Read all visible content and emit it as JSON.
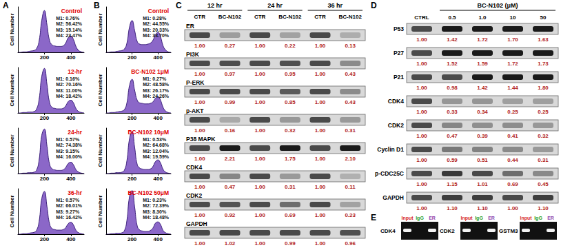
{
  "chart_data": [
    {
      "type": "area",
      "panel": "A",
      "title": "Control",
      "annotations": [
        "M1: 0.76%",
        "M2: 56.42%",
        "M3: 15.14%",
        "M4: 23.47%"
      ],
      "y_label": "Cell Number",
      "color": "#7e57c2",
      "tick_labels": "x",
      "xlim": [
        0,
        500
      ],
      "xticks": [
        200,
        400
      ],
      "ylim": [
        0,
        100
      ],
      "x": [
        0,
        20,
        40,
        60,
        80,
        100,
        120,
        140,
        160,
        180,
        200,
        220,
        240,
        260,
        280,
        300,
        320,
        340,
        360,
        380,
        400,
        420,
        440,
        460,
        480,
        500
      ],
      "values": [
        0,
        0,
        1,
        1,
        2,
        3,
        4,
        8,
        25,
        70,
        92,
        60,
        25,
        16,
        14,
        13,
        13,
        14,
        20,
        32,
        36,
        28,
        12,
        4,
        1,
        0
      ]
    },
    {
      "type": "area",
      "panel": "A",
      "title": "12-hr",
      "annotations": [
        "M1: 0.16%",
        "M2: 70.16%",
        "M3: 11.00%",
        "M4: 18.42%"
      ],
      "y_label": "Cell Number",
      "color": "#7e57c2",
      "tick_labels": "x",
      "xlim": [
        0,
        500
      ],
      "xticks": [
        200,
        400
      ],
      "ylim": [
        0,
        100
      ],
      "x": [
        0,
        20,
        40,
        60,
        80,
        100,
        120,
        140,
        160,
        180,
        200,
        220,
        240,
        260,
        280,
        300,
        320,
        340,
        360,
        380,
        400,
        420,
        440,
        460,
        480,
        500
      ],
      "values": [
        0,
        0,
        1,
        1,
        2,
        2,
        3,
        8,
        30,
        80,
        98,
        62,
        22,
        12,
        10,
        9,
        9,
        10,
        15,
        25,
        28,
        22,
        9,
        3,
        1,
        0
      ]
    },
    {
      "type": "area",
      "panel": "A",
      "title": "24-hr",
      "annotations": [
        "M1: 0.57%",
        "M2: 74.38%",
        "M3: 9.15%",
        "M4: 16.00%"
      ],
      "y_label": "Cell Number",
      "color": "#7e57c2",
      "tick_labels": "x",
      "xlim": [
        0,
        500
      ],
      "xticks": [
        200,
        400
      ],
      "ylim": [
        0,
        100
      ],
      "x": [
        0,
        20,
        40,
        60,
        80,
        100,
        120,
        140,
        160,
        180,
        200,
        220,
        240,
        260,
        280,
        300,
        320,
        340,
        360,
        380,
        400,
        420,
        440,
        460,
        480,
        500
      ],
      "values": [
        0,
        0,
        1,
        1,
        2,
        2,
        3,
        7,
        30,
        84,
        98,
        60,
        20,
        10,
        8,
        7,
        7,
        8,
        13,
        22,
        25,
        19,
        8,
        3,
        1,
        0
      ]
    },
    {
      "type": "area",
      "panel": "A",
      "title": "36-hr",
      "annotations": [
        "M1: 0.57%",
        "M2: 66.01%",
        "M3: 9.27%",
        "M4: 16.42%"
      ],
      "y_label": "Cell Number",
      "color": "#7e57c2",
      "tick_labels": "x",
      "xlim": [
        0,
        500
      ],
      "xticks": [
        200,
        400
      ],
      "ylim": [
        0,
        100
      ],
      "x": [
        0,
        20,
        40,
        60,
        80,
        100,
        120,
        140,
        160,
        180,
        200,
        220,
        240,
        260,
        280,
        300,
        320,
        340,
        360,
        380,
        400,
        420,
        440,
        460,
        480,
        500
      ],
      "values": [
        0,
        0,
        1,
        1,
        2,
        3,
        4,
        8,
        28,
        78,
        94,
        60,
        22,
        12,
        10,
        9,
        9,
        10,
        14,
        23,
        26,
        20,
        8,
        3,
        1,
        0
      ]
    },
    {
      "type": "area",
      "panel": "B",
      "title": "Control",
      "annotations": [
        "M1: 0.28%",
        "M2: 44.55%",
        "M3: 20.33%",
        "M4: 33.70%"
      ],
      "y_label": "Cell Number",
      "color": "#7e57c2",
      "tick_labels": "x",
      "xlim": [
        0,
        500
      ],
      "xticks": [
        200,
        400
      ],
      "ylim": [
        0,
        100
      ],
      "x": [
        0,
        20,
        40,
        60,
        80,
        100,
        120,
        140,
        160,
        180,
        200,
        220,
        240,
        260,
        280,
        300,
        320,
        340,
        360,
        380,
        400,
        420,
        440,
        460,
        480,
        500
      ],
      "values": [
        0,
        0,
        1,
        1,
        2,
        3,
        4,
        7,
        20,
        55,
        70,
        48,
        24,
        18,
        17,
        17,
        18,
        20,
        26,
        38,
        44,
        34,
        14,
        5,
        1,
        0
      ]
    },
    {
      "type": "area",
      "panel": "B",
      "title": "BC-N102 1μM",
      "annotations": [
        "M1: 0.27%",
        "M2: 48.58%",
        "M3: 26.17%",
        "M4: 24.26%"
      ],
      "y_label": "Cell Number",
      "color": "#7e57c2",
      "tick_labels": "x",
      "xlim": [
        0,
        500
      ],
      "xticks": [
        200,
        400
      ],
      "ylim": [
        0,
        100
      ],
      "x": [
        0,
        20,
        40,
        60,
        80,
        100,
        120,
        140,
        160,
        180,
        200,
        220,
        240,
        260,
        280,
        300,
        320,
        340,
        360,
        380,
        400,
        420,
        440,
        460,
        480,
        500
      ],
      "values": [
        0,
        0,
        1,
        1,
        2,
        3,
        4,
        7,
        22,
        60,
        74,
        50,
        28,
        22,
        21,
        20,
        20,
        21,
        24,
        32,
        36,
        28,
        12,
        4,
        1,
        0
      ]
    },
    {
      "type": "area",
      "panel": "B",
      "title": "BC-N102 10μM",
      "annotations": [
        "M1: 0.53%",
        "M2: 64.68%",
        "M3: 12.04%",
        "M4: 19.59%"
      ],
      "y_label": "Cell Number",
      "color": "#7e57c2",
      "tick_labels": "x",
      "xlim": [
        0,
        500
      ],
      "xticks": [
        200,
        400
      ],
      "ylim": [
        0,
        100
      ],
      "x": [
        0,
        20,
        40,
        60,
        80,
        100,
        120,
        140,
        160,
        180,
        200,
        220,
        240,
        260,
        280,
        300,
        320,
        340,
        360,
        380,
        400,
        420,
        440,
        460,
        480,
        500
      ],
      "values": [
        0,
        0,
        1,
        1,
        2,
        2,
        3,
        7,
        28,
        76,
        92,
        58,
        20,
        12,
        10,
        9,
        9,
        10,
        15,
        26,
        30,
        23,
        9,
        3,
        1,
        0
      ]
    },
    {
      "type": "area",
      "panel": "B",
      "title": "BC-N102 50μM",
      "annotations": [
        "M1: 0.23%",
        "M2: 72.39%",
        "M3: 8.30%",
        "M4: 18.48%"
      ],
      "y_label": "Cell Number",
      "color": "#7e57c2",
      "tick_labels": "x",
      "xlim": [
        0,
        500
      ],
      "xticks": [
        200,
        400
      ],
      "ylim": [
        0,
        100
      ],
      "x": [
        0,
        20,
        40,
        60,
        80,
        100,
        120,
        140,
        160,
        180,
        200,
        220,
        240,
        260,
        280,
        300,
        320,
        340,
        360,
        380,
        400,
        420,
        440,
        460,
        480,
        500
      ],
      "values": [
        0,
        0,
        1,
        1,
        2,
        2,
        3,
        7,
        30,
        82,
        96,
        60,
        18,
        9,
        7,
        6,
        6,
        8,
        13,
        24,
        27,
        21,
        8,
        3,
        1,
        0
      ]
    }
  ],
  "blot_c": {
    "label": "C",
    "groups": [
      "12 hr",
      "24 hr",
      "36 hr"
    ],
    "lanes": [
      "CTR",
      "BC-N102"
    ],
    "rows": [
      {
        "name": "ER",
        "values": [
          "1.00",
          "0.27",
          "1.00",
          "0.22",
          "1.00",
          "0.13"
        ]
      },
      {
        "name": "PI3K",
        "values": [
          "1.00",
          "0.97",
          "1.00",
          "0.95",
          "1.00",
          "0.43"
        ]
      },
      {
        "name": "P-ERK",
        "values": [
          "1.00",
          "0.99",
          "1.00",
          "0.85",
          "1.00",
          "0.43"
        ]
      },
      {
        "name": "p-AKT",
        "values": [
          "1.00",
          "0.16",
          "1.00",
          "0.32",
          "1.00",
          "0.31"
        ]
      },
      {
        "name": "P38 MAPK",
        "values": [
          "1.00",
          "2.21",
          "1.00",
          "1.75",
          "1.00",
          "2.10"
        ]
      },
      {
        "name": "CDK4",
        "values": [
          "1.00",
          "0.47",
          "1.00",
          "0.31",
          "1.00",
          "0.11"
        ]
      },
      {
        "name": "CDK2",
        "values": [
          "1.00",
          "0.92",
          "1.00",
          "0.69",
          "1.00",
          "0.23"
        ]
      },
      {
        "name": "GAPDH",
        "values": [
          "1.00",
          "1.02",
          "1.00",
          "0.99",
          "1.00",
          "0.96"
        ]
      }
    ]
  },
  "blot_d": {
    "label": "D",
    "header": "BC-N102 (μM)",
    "lanes": [
      "CTRL",
      "0.5",
      "1.0",
      "10",
      "50"
    ],
    "rows": [
      {
        "name": "P53",
        "values": [
          "1.00",
          "1.42",
          "1.72",
          "1.70",
          "1.63"
        ]
      },
      {
        "name": "P27",
        "values": [
          "1.00",
          "1.52",
          "1.59",
          "1.72",
          "1.73"
        ]
      },
      {
        "name": "P21",
        "values": [
          "1.00",
          "0.98",
          "1.42",
          "1.44",
          "1.80"
        ]
      },
      {
        "name": "CDK4",
        "values": [
          "1.00",
          "0.33",
          "0.34",
          "0.25",
          "0.25"
        ]
      },
      {
        "name": "CDK2",
        "values": [
          "1.00",
          "0.47",
          "0.39",
          "0.41",
          "0.32"
        ]
      },
      {
        "name": "Cyclin D1",
        "values": [
          "1.00",
          "0.59",
          "0.51",
          "0.44",
          "0.31"
        ]
      },
      {
        "name": "p-CDC25C",
        "values": [
          "1.00",
          "1.15",
          "1.01",
          "0.69",
          "0.45"
        ]
      },
      {
        "name": "GAPDH",
        "values": [
          "1.00",
          "1.10",
          "1.10",
          "1.00",
          "1.10"
        ]
      }
    ]
  },
  "gel_e": {
    "label": "E",
    "lanes": [
      "Input",
      "IgG",
      "ER"
    ],
    "lane_colors": [
      "#d62728",
      "#2ca02c",
      "#8e44ad"
    ],
    "gels": [
      {
        "name": "CDK4",
        "bands": [
          true,
          false,
          true
        ]
      },
      {
        "name": "CDK2",
        "bands": [
          true,
          false,
          true
        ]
      },
      {
        "name": "GSTM3",
        "bands": [
          true,
          false,
          true
        ]
      }
    ]
  }
}
